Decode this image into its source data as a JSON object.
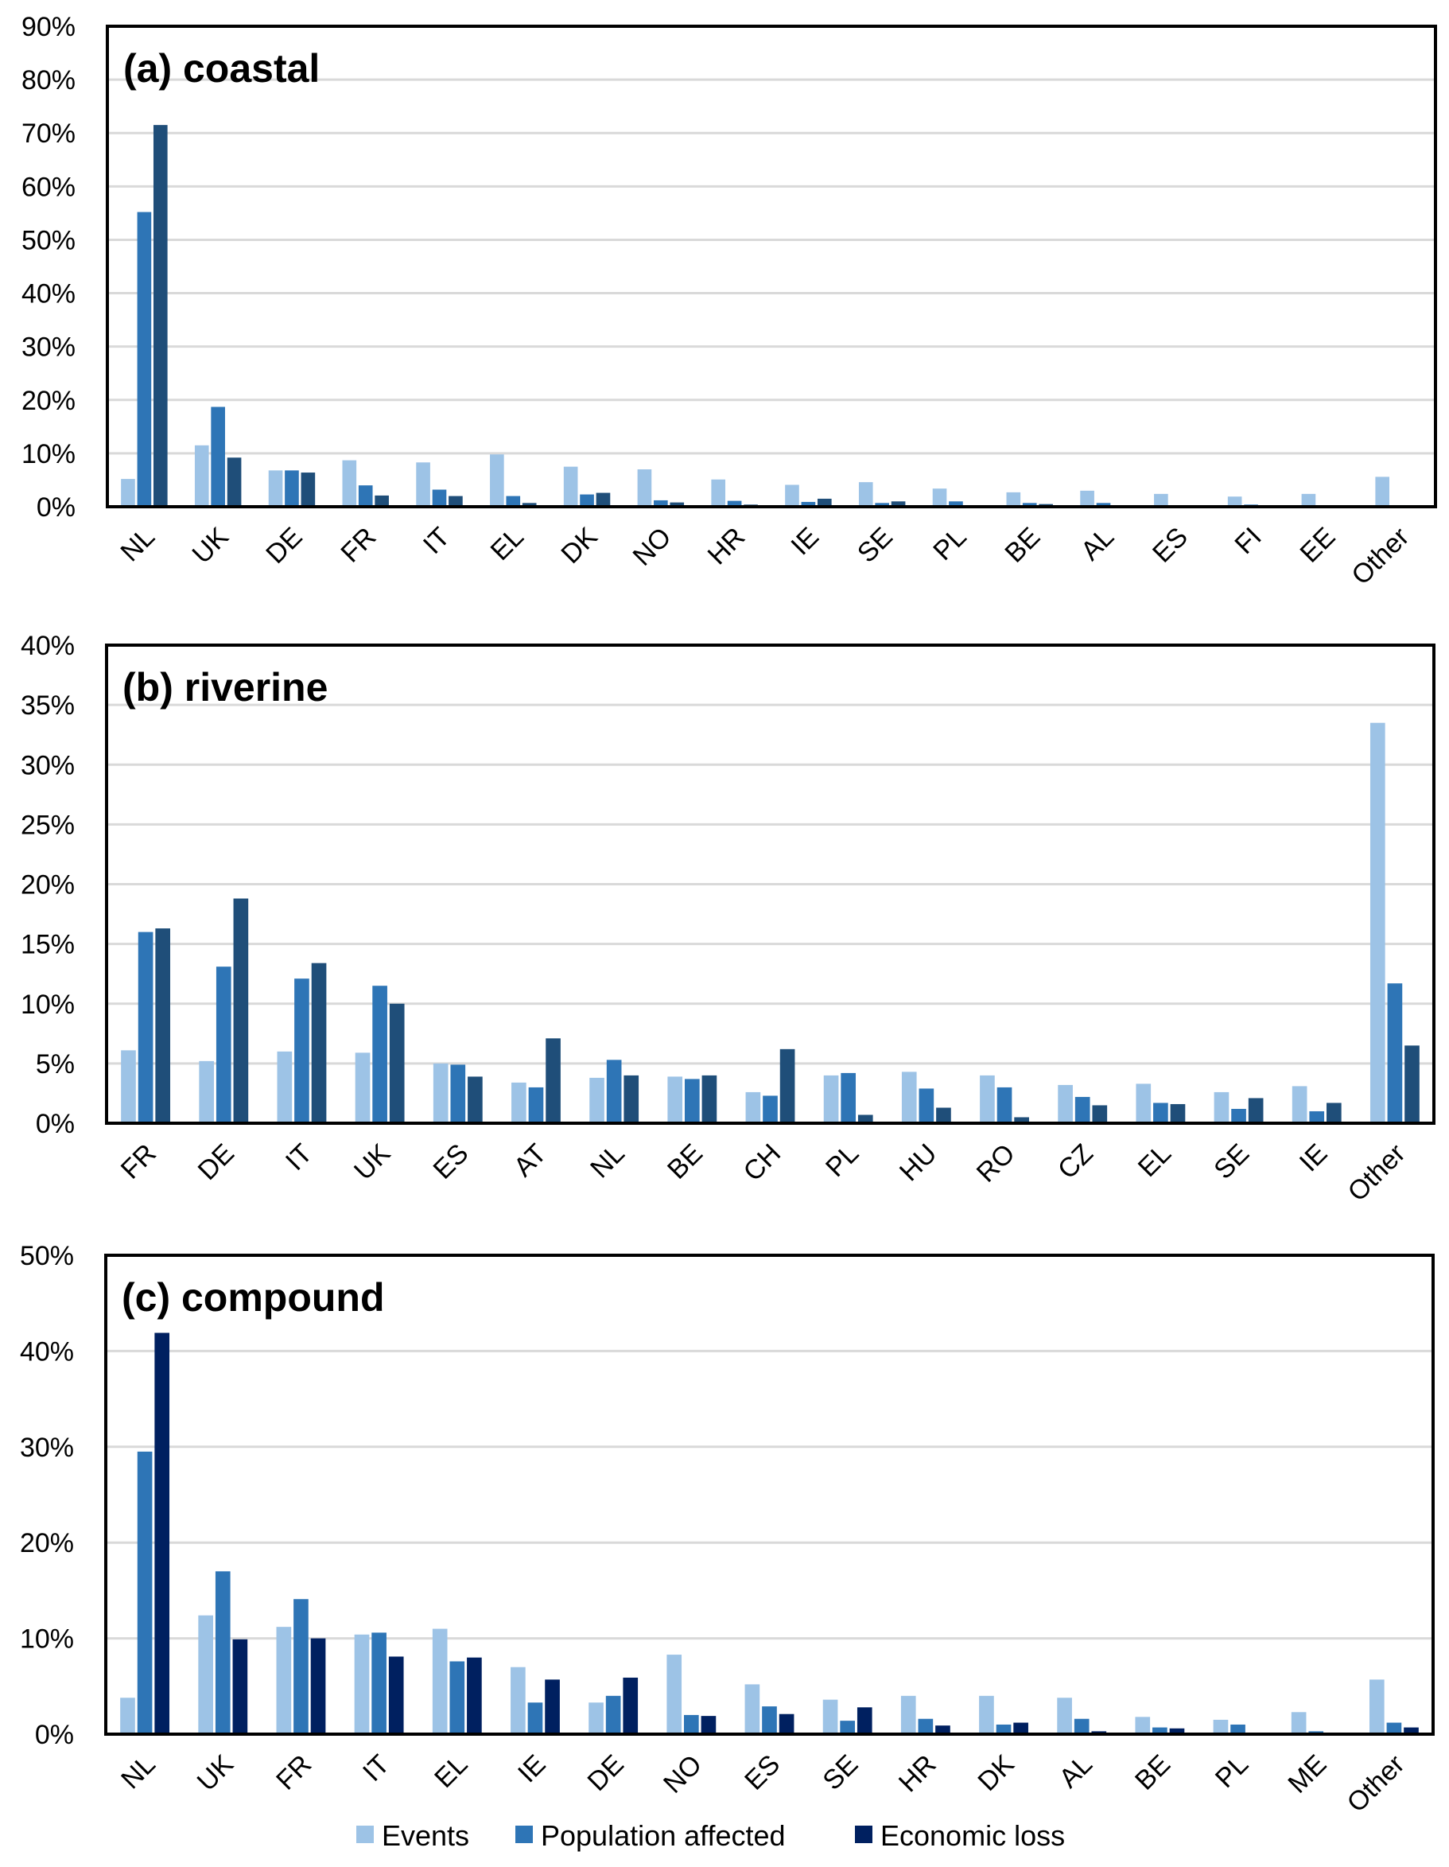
{
  "colors": {
    "events": "#9dc3e6",
    "population": "#2e75b6",
    "economic": "#1f4e79",
    "economic_c": "#002060",
    "grid": "#d9d9d9"
  },
  "legend": {
    "position": "bottom",
    "items": [
      "Events",
      "Population affected",
      "Economic loss"
    ]
  },
  "chart_data": [
    {
      "type": "bar",
      "title": "(a) coastal",
      "ylim": [
        0,
        90
      ],
      "yticks": [
        "0%",
        "10%",
        "20%",
        "30%",
        "40%",
        "50%",
        "60%",
        "70%",
        "80%",
        "90%"
      ],
      "grid": true,
      "categories": [
        "NL",
        "UK",
        "DE",
        "FR",
        "IT",
        "EL",
        "DK",
        "NO",
        "HR",
        "IE",
        "SE",
        "PL",
        "BE",
        "AL",
        "ES",
        "FI",
        "EE",
        "Other"
      ],
      "series": [
        {
          "name": "Events",
          "values": [
            5.2,
            11.5,
            6.8,
            8.7,
            8.3,
            9.8,
            7.5,
            7.0,
            5.1,
            4.1,
            4.6,
            3.4,
            2.7,
            3.0,
            2.4,
            1.9,
            2.4,
            5.6
          ]
        },
        {
          "name": "Population affected",
          "values": [
            55.2,
            18.7,
            6.8,
            4.0,
            3.2,
            2.0,
            2.3,
            1.2,
            1.1,
            0.9,
            0.7,
            1.0,
            0.7,
            0.7,
            0.2,
            0.4,
            0,
            0.3
          ]
        },
        {
          "name": "Economic loss",
          "values": [
            71.5,
            9.2,
            6.4,
            2.1,
            2.0,
            0.7,
            2.6,
            0.8,
            0.4,
            1.5,
            1.0,
            0.1,
            0.5,
            0.1,
            0.2,
            0.2,
            0,
            0.1
          ]
        }
      ]
    },
    {
      "type": "bar",
      "title": "(b) riverine",
      "ylim": [
        0,
        40
      ],
      "yticks": [
        "0%",
        "5%",
        "10%",
        "15%",
        "20%",
        "25%",
        "30%",
        "35%",
        "40%"
      ],
      "grid": true,
      "categories": [
        "FR",
        "DE",
        "IT",
        "UK",
        "ES",
        "AT",
        "NL",
        "BE",
        "CH",
        "PL",
        "HU",
        "RO",
        "CZ",
        "EL",
        "SE",
        "IE",
        "Other"
      ],
      "series": [
        {
          "name": "Events",
          "values": [
            6.1,
            5.2,
            6.0,
            5.9,
            5.0,
            3.4,
            3.8,
            3.9,
            2.6,
            4.0,
            4.3,
            4.0,
            3.2,
            3.3,
            2.6,
            3.1,
            33.5
          ]
        },
        {
          "name": "Population affected",
          "values": [
            16.0,
            13.1,
            12.1,
            11.5,
            4.9,
            3.0,
            5.3,
            3.7,
            2.3,
            4.2,
            2.9,
            3.0,
            2.2,
            1.7,
            1.2,
            1.0,
            11.7
          ]
        },
        {
          "name": "Economic loss",
          "values": [
            16.3,
            18.8,
            13.4,
            10.0,
            3.9,
            7.1,
            4.0,
            4.0,
            6.2,
            0.7,
            1.3,
            0.5,
            1.5,
            1.6,
            2.1,
            1.7,
            6.5
          ]
        }
      ]
    },
    {
      "type": "bar",
      "title": "(c) compound",
      "ylim": [
        0,
        50
      ],
      "yticks": [
        "0%",
        "10%",
        "20%",
        "30%",
        "40%",
        "50%"
      ],
      "grid": true,
      "categories": [
        "NL",
        "UK",
        "FR",
        "IT",
        "EL",
        "IE",
        "DE",
        "NO",
        "ES",
        "SE",
        "HR",
        "DK",
        "AL",
        "BE",
        "PL",
        "ME",
        "Other"
      ],
      "series": [
        {
          "name": "Events",
          "values": [
            3.8,
            12.4,
            11.2,
            10.4,
            11.0,
            7.0,
            3.3,
            8.3,
            5.2,
            3.6,
            4.0,
            4.0,
            3.8,
            1.8,
            1.5,
            2.3,
            5.7
          ]
        },
        {
          "name": "Population affected",
          "values": [
            29.5,
            17.0,
            14.1,
            10.6,
            7.6,
            3.3,
            4.0,
            2.0,
            2.9,
            1.4,
            1.6,
            1.0,
            1.6,
            0.7,
            1.0,
            0.3,
            1.2
          ]
        },
        {
          "name": "Economic loss",
          "values": [
            41.9,
            9.9,
            10.0,
            8.1,
            8.0,
            5.7,
            5.9,
            1.9,
            2.1,
            2.8,
            0.9,
            1.2,
            0.3,
            0.6,
            0,
            0,
            0.7
          ]
        }
      ]
    }
  ]
}
